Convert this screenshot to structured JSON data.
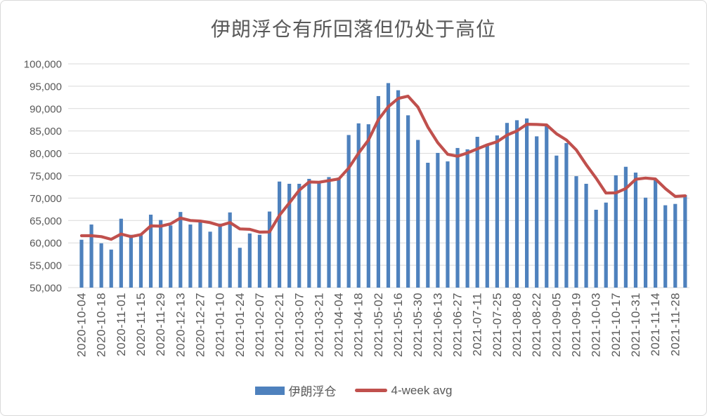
{
  "title": "伊朗浮仓有所回落但仍处于高位",
  "legend": [
    {
      "label": "伊朗浮仓",
      "type": "bar",
      "color": "#4e81bd"
    },
    {
      "label": "4-week avg",
      "type": "line",
      "color": "#c0504d"
    }
  ],
  "colors": {
    "bar": "#4e81bd",
    "line": "#c0504d",
    "grid": "#d9d9d9",
    "text": "#595959",
    "background": "#ffffff"
  },
  "chart_data": {
    "type": "bar",
    "title": "伊朗浮仓有所回落但仍处于高位",
    "xlabel": "",
    "ylabel": "",
    "ylim": [
      50000,
      100000
    ],
    "ytick_step": 5000,
    "y_tick_labels": [
      "50,000",
      "55,000",
      "60,000",
      "65,000",
      "70,000",
      "75,000",
      "80,000",
      "85,000",
      "90,000",
      "95,000",
      "100,000"
    ],
    "x_tick_interval": 2,
    "grid": true,
    "legend_position": "bottom",
    "x": [
      "2020-10-04",
      "2020-10-11",
      "2020-10-18",
      "2020-10-25",
      "2020-11-01",
      "2020-11-08",
      "2020-11-15",
      "2020-11-22",
      "2020-11-29",
      "2020-12-06",
      "2020-12-13",
      "2020-12-20",
      "2020-12-27",
      "2021-01-03",
      "2021-01-10",
      "2021-01-17",
      "2021-01-24",
      "2021-01-31",
      "2021-02-07",
      "2021-02-14",
      "2021-02-21",
      "2021-02-28",
      "2021-03-07",
      "2021-03-14",
      "2021-03-21",
      "2021-03-28",
      "2021-04-04",
      "2021-04-11",
      "2021-04-18",
      "2021-04-25",
      "2021-05-02",
      "2021-05-09",
      "2021-05-16",
      "2021-05-23",
      "2021-05-30",
      "2021-06-06",
      "2021-06-13",
      "2021-06-20",
      "2021-06-27",
      "2021-07-04",
      "2021-07-11",
      "2021-07-18",
      "2021-07-25",
      "2021-08-01",
      "2021-08-08",
      "2021-08-15",
      "2021-08-22",
      "2021-08-29",
      "2021-09-05",
      "2021-09-12",
      "2021-09-19",
      "2021-09-26",
      "2021-10-03",
      "2021-10-10",
      "2021-10-17",
      "2021-10-24",
      "2021-10-31",
      "2021-11-07",
      "2021-11-14",
      "2021-11-21",
      "2021-11-28",
      "2021-12-05"
    ],
    "series": [
      {
        "name": "伊朗浮仓",
        "type": "bar",
        "color": "#4e81bd",
        "values": [
          60700,
          64100,
          59900,
          58500,
          65400,
          61800,
          61700,
          66300,
          65100,
          63900,
          66900,
          64100,
          64600,
          62500,
          64300,
          66800,
          58900,
          62100,
          61800,
          67000,
          73700,
          73200,
          73200,
          74300,
          73500,
          74700,
          74600,
          84100,
          86700,
          86500,
          92800,
          95700,
          94100,
          88500,
          83000,
          77900,
          80100,
          78200,
          81200,
          80900,
          83700,
          81800,
          84000,
          86800,
          87400,
          87800,
          83800,
          86400,
          79500,
          82300,
          74900,
          73200,
          67400,
          69000,
          75100,
          77000,
          75700,
          70100,
          74300,
          68400,
          68700,
          70700
        ]
      },
      {
        "name": "4-week avg",
        "type": "line",
        "color": "#c0504d",
        "values": [
          61600,
          61600,
          61400,
          60800,
          61975,
          61400,
          61850,
          63800,
          63725,
          64250,
          65550,
          65000,
          64875,
          64525,
          63875,
          64550,
          63125,
          63025,
          62400,
          62450,
          66150,
          68925,
          71775,
          73600,
          73550,
          73925,
          74275,
          76725,
          80025,
          82975,
          87525,
          90425,
          92275,
          92775,
          90325,
          85875,
          82375,
          79800,
          79350,
          80100,
          81000,
          81900,
          82600,
          84075,
          85000,
          86500,
          86450,
          86350,
          84375,
          83000,
          80775,
          77475,
          74450,
          71125,
          71175,
          72125,
          74200,
          74475,
          74275,
          72125,
          70375,
          70525
        ]
      }
    ]
  }
}
